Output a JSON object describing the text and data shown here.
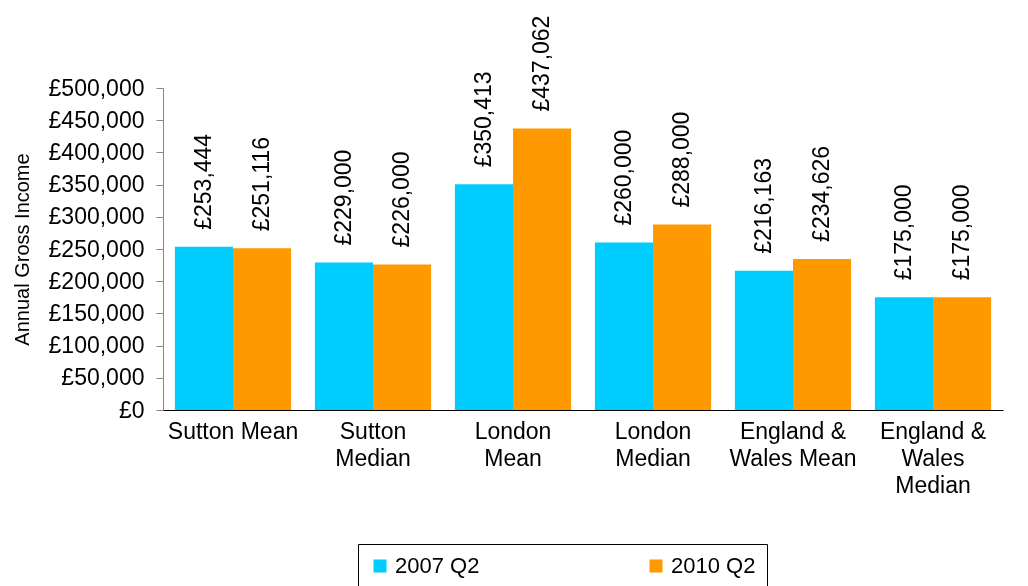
{
  "chart_data": {
    "type": "bar",
    "ylabel": "Annual Gross Income",
    "categories": [
      "Sutton Mean",
      "Sutton\nMedian",
      "London\nMean",
      "London\nMedian",
      "England &\nWales Mean",
      "England &\nWales\nMedian"
    ],
    "series": [
      {
        "name": "2007 Q2",
        "color": "#00ccff",
        "values": [
          253444,
          229000,
          350413,
          260000,
          216163,
          175000
        ],
        "value_labels": [
          "£253,444",
          "£229,000",
          "£350,413",
          "£260,000",
          "£216,163",
          "£175,000"
        ]
      },
      {
        "name": "2010 Q2",
        "color": "#ff9900",
        "values": [
          251116,
          226000,
          437062,
          288000,
          234626,
          175000
        ],
        "value_labels": [
          "£251,116",
          "£226,000",
          "£437,062",
          "£288,000",
          "£234,626",
          "£175,000"
        ]
      }
    ],
    "ylim": [
      0,
      500000
    ],
    "yticks": [
      {
        "value": 0,
        "label": "£0"
      },
      {
        "value": 50000,
        "label": "£50,000"
      },
      {
        "value": 100000,
        "label": "£100,000"
      },
      {
        "value": 150000,
        "label": "£150,000"
      },
      {
        "value": 200000,
        "label": "£200,000"
      },
      {
        "value": 250000,
        "label": "£250,000"
      },
      {
        "value": 300000,
        "label": "£300,000"
      },
      {
        "value": 350000,
        "label": "£350,000"
      },
      {
        "value": 400000,
        "label": "£400,000"
      },
      {
        "value": 450000,
        "label": "£450,000"
      },
      {
        "value": 500000,
        "label": "£500,000"
      }
    ],
    "grid": false,
    "legend": "bottom"
  }
}
